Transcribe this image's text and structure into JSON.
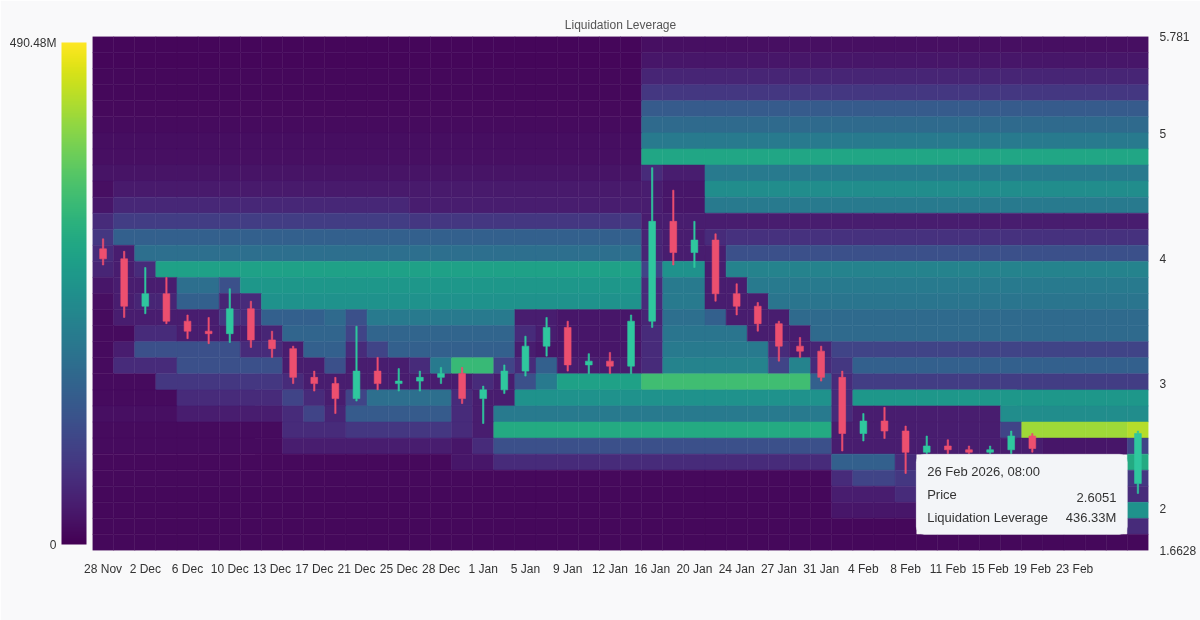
{
  "chart_data": {
    "type": "heatmap",
    "categories": [
      "28 Nov",
      null,
      "2 Dec",
      null,
      "6 Dec",
      null,
      "10 Dec",
      null,
      "13 Dec",
      null,
      "17 Dec",
      null,
      "21 Dec",
      null,
      "25 Dec",
      null,
      "28 Dec",
      null,
      "1 Jan",
      null,
      "5 Jan",
      null,
      "9 Jan",
      null,
      "12 Jan",
      null,
      "16 Jan",
      null,
      "20 Jan",
      null,
      "24 Jan",
      null,
      "27 Jan",
      null,
      "31 Jan",
      null,
      "4 Feb",
      null,
      "8 Feb",
      null,
      "11 Feb",
      null,
      "15 Feb",
      null,
      "19 Feb",
      null,
      "23 Feb",
      null,
      null,
      null
    ],
    "ylim": [
      1.6628,
      5.781
    ],
    "yticks": [
      1.6628,
      2,
      3,
      4,
      5,
      5.781
    ],
    "clim": [
      0,
      490.48
    ],
    "cticks": [
      0,
      {
        "value": 490.48,
        "label": "490.48M"
      }
    ],
    "clabel": "Liquidation Leverage",
    "annotations": [
      "26 Feb 2026, 08:00",
      "Price",
      "2.6051",
      "Liquidation Leverage",
      "436.33M"
    ],
    "cells": [
      [
        8,
        8,
        8,
        8,
        8,
        8,
        8,
        8,
        8,
        8,
        8,
        8,
        8,
        8,
        8,
        8,
        8,
        8,
        8,
        8,
        8,
        8,
        8,
        8,
        8,
        8,
        20,
        20,
        20,
        20,
        20,
        20,
        20,
        20,
        20,
        20,
        20,
        20,
        20,
        20,
        20,
        20,
        20,
        20,
        20,
        20,
        20,
        20,
        20,
        20
      ],
      [
        8,
        8,
        8,
        8,
        8,
        8,
        8,
        8,
        8,
        8,
        8,
        8,
        8,
        8,
        8,
        8,
        8,
        8,
        8,
        8,
        8,
        8,
        8,
        8,
        8,
        8,
        30,
        30,
        30,
        30,
        30,
        30,
        30,
        30,
        30,
        30,
        30,
        30,
        30,
        30,
        30,
        30,
        30,
        30,
        30,
        30,
        30,
        30,
        30,
        30
      ],
      [
        10,
        10,
        10,
        10,
        10,
        10,
        10,
        10,
        10,
        10,
        10,
        10,
        10,
        10,
        10,
        10,
        10,
        10,
        10,
        10,
        10,
        10,
        10,
        10,
        10,
        10,
        50,
        50,
        50,
        50,
        50,
        50,
        50,
        50,
        50,
        50,
        50,
        50,
        50,
        50,
        50,
        50,
        50,
        50,
        50,
        50,
        50,
        50,
        50,
        50
      ],
      [
        10,
        10,
        10,
        10,
        10,
        10,
        10,
        10,
        10,
        10,
        10,
        10,
        10,
        10,
        10,
        10,
        10,
        10,
        10,
        10,
        10,
        10,
        10,
        10,
        10,
        10,
        80,
        80,
        80,
        80,
        80,
        80,
        80,
        80,
        80,
        80,
        80,
        80,
        80,
        80,
        80,
        80,
        80,
        80,
        80,
        80,
        80,
        80,
        80,
        80
      ],
      [
        12,
        12,
        12,
        12,
        12,
        12,
        12,
        12,
        12,
        12,
        12,
        12,
        12,
        12,
        12,
        12,
        12,
        12,
        12,
        12,
        12,
        12,
        12,
        12,
        12,
        12,
        140,
        140,
        140,
        140,
        140,
        140,
        140,
        140,
        140,
        140,
        140,
        140,
        140,
        140,
        140,
        140,
        140,
        140,
        140,
        140,
        140,
        140,
        140,
        140
      ],
      [
        15,
        15,
        15,
        15,
        15,
        15,
        15,
        15,
        15,
        15,
        15,
        15,
        15,
        15,
        15,
        15,
        15,
        15,
        15,
        15,
        15,
        15,
        15,
        15,
        15,
        15,
        170,
        170,
        170,
        170,
        170,
        170,
        170,
        170,
        170,
        170,
        170,
        170,
        170,
        170,
        170,
        170,
        170,
        170,
        170,
        170,
        170,
        170,
        170,
        170
      ],
      [
        18,
        18,
        18,
        18,
        18,
        18,
        18,
        18,
        18,
        18,
        18,
        18,
        18,
        18,
        18,
        18,
        18,
        18,
        18,
        18,
        18,
        18,
        18,
        18,
        18,
        18,
        200,
        200,
        200,
        200,
        200,
        200,
        200,
        200,
        200,
        200,
        200,
        200,
        200,
        200,
        200,
        200,
        200,
        200,
        200,
        200,
        200,
        200,
        200,
        200
      ],
      [
        20,
        20,
        20,
        20,
        20,
        20,
        20,
        20,
        20,
        20,
        20,
        20,
        20,
        20,
        20,
        20,
        20,
        20,
        20,
        20,
        20,
        20,
        20,
        20,
        20,
        20,
        290,
        290,
        290,
        290,
        290,
        290,
        290,
        290,
        290,
        290,
        290,
        290,
        290,
        290,
        290,
        290,
        290,
        290,
        290,
        290,
        290,
        290,
        290,
        290
      ],
      [
        25,
        25,
        25,
        25,
        25,
        25,
        25,
        25,
        25,
        25,
        25,
        25,
        25,
        25,
        25,
        25,
        25,
        25,
        25,
        25,
        25,
        25,
        25,
        25,
        25,
        25,
        60,
        40,
        40,
        200,
        200,
        200,
        200,
        200,
        200,
        200,
        200,
        200,
        200,
        200,
        200,
        200,
        200,
        200,
        200,
        200,
        200,
        200,
        200,
        200
      ],
      [
        20,
        35,
        35,
        35,
        35,
        35,
        35,
        35,
        35,
        35,
        35,
        35,
        35,
        35,
        35,
        35,
        35,
        35,
        35,
        35,
        35,
        35,
        35,
        35,
        35,
        35,
        40,
        30,
        30,
        240,
        240,
        240,
        240,
        240,
        240,
        240,
        240,
        240,
        240,
        240,
        240,
        240,
        240,
        240,
        240,
        240,
        240,
        240,
        240,
        240
      ],
      [
        30,
        55,
        55,
        55,
        55,
        55,
        55,
        55,
        55,
        55,
        55,
        55,
        55,
        55,
        55,
        40,
        40,
        40,
        40,
        40,
        40,
        40,
        40,
        40,
        40,
        40,
        40,
        30,
        30,
        200,
        200,
        200,
        200,
        200,
        200,
        200,
        200,
        200,
        200,
        200,
        200,
        200,
        200,
        200,
        200,
        200,
        200,
        200,
        200,
        200
      ],
      [
        60,
        90,
        90,
        90,
        90,
        90,
        90,
        90,
        90,
        90,
        90,
        90,
        90,
        90,
        90,
        80,
        80,
        80,
        80,
        80,
        80,
        80,
        80,
        80,
        80,
        80,
        40,
        40,
        40,
        40,
        40,
        40,
        40,
        40,
        40,
        40,
        40,
        40,
        40,
        40,
        40,
        40,
        40,
        40,
        40,
        40,
        40,
        40,
        40,
        40
      ],
      [
        80,
        150,
        150,
        150,
        150,
        150,
        150,
        150,
        150,
        150,
        150,
        150,
        150,
        150,
        150,
        150,
        150,
        150,
        150,
        150,
        150,
        150,
        150,
        150,
        150,
        150,
        50,
        40,
        40,
        60,
        70,
        70,
        70,
        70,
        70,
        70,
        70,
        70,
        70,
        70,
        70,
        70,
        70,
        70,
        70,
        70,
        70,
        70,
        70,
        70
      ],
      [
        60,
        40,
        180,
        180,
        180,
        180,
        180,
        180,
        180,
        180,
        180,
        180,
        180,
        180,
        180,
        180,
        180,
        180,
        180,
        180,
        180,
        180,
        180,
        180,
        180,
        180,
        50,
        40,
        40,
        40,
        120,
        120,
        120,
        120,
        120,
        120,
        120,
        120,
        120,
        120,
        120,
        120,
        120,
        120,
        120,
        120,
        120,
        120,
        120,
        120
      ],
      [
        50,
        40,
        60,
        280,
        280,
        280,
        280,
        280,
        280,
        280,
        280,
        280,
        280,
        280,
        280,
        280,
        280,
        280,
        280,
        280,
        280,
        280,
        280,
        280,
        280,
        280,
        100,
        250,
        250,
        40,
        220,
        220,
        220,
        220,
        220,
        220,
        220,
        220,
        220,
        220,
        220,
        220,
        220,
        220,
        220,
        220,
        220,
        220,
        220,
        220
      ],
      [
        30,
        40,
        40,
        40,
        180,
        180,
        120,
        260,
        260,
        260,
        260,
        260,
        260,
        260,
        260,
        260,
        260,
        260,
        260,
        260,
        260,
        260,
        260,
        260,
        260,
        260,
        60,
        200,
        200,
        40,
        40,
        200,
        200,
        200,
        200,
        200,
        200,
        200,
        200,
        200,
        200,
        200,
        200,
        200,
        200,
        200,
        200,
        200,
        200,
        200
      ],
      [
        20,
        40,
        50,
        50,
        150,
        150,
        50,
        60,
        250,
        250,
        250,
        250,
        250,
        250,
        250,
        250,
        250,
        250,
        250,
        250,
        250,
        250,
        250,
        250,
        250,
        250,
        60,
        200,
        200,
        40,
        40,
        40,
        190,
        190,
        190,
        190,
        190,
        190,
        190,
        190,
        190,
        190,
        190,
        190,
        190,
        190,
        190,
        190,
        190,
        190
      ],
      [
        15,
        40,
        40,
        40,
        40,
        40,
        80,
        60,
        150,
        150,
        150,
        170,
        120,
        200,
        200,
        200,
        200,
        200,
        200,
        200,
        40,
        40,
        30,
        30,
        30,
        30,
        50,
        180,
        180,
        150,
        40,
        40,
        40,
        170,
        170,
        170,
        170,
        170,
        170,
        170,
        170,
        170,
        170,
        170,
        170,
        170,
        170,
        170,
        170,
        170
      ],
      [
        15,
        15,
        60,
        60,
        40,
        40,
        40,
        40,
        50,
        160,
        160,
        160,
        100,
        160,
        160,
        160,
        160,
        160,
        160,
        160,
        60,
        40,
        30,
        30,
        30,
        30,
        60,
        190,
        190,
        190,
        190,
        40,
        40,
        40,
        170,
        170,
        170,
        170,
        170,
        170,
        170,
        170,
        170,
        170,
        170,
        170,
        170,
        170,
        170,
        170
      ],
      [
        15,
        40,
        120,
        120,
        120,
        120,
        120,
        60,
        60,
        40,
        150,
        150,
        60,
        100,
        150,
        150,
        150,
        150,
        150,
        150,
        40,
        30,
        30,
        30,
        30,
        30,
        60,
        200,
        200,
        200,
        200,
        200,
        60,
        40,
        50,
        100,
        100,
        100,
        100,
        100,
        100,
        100,
        100,
        100,
        100,
        100,
        100,
        100,
        100,
        100
      ],
      [
        15,
        60,
        60,
        60,
        120,
        120,
        120,
        120,
        120,
        40,
        40,
        120,
        40,
        40,
        40,
        60,
        200,
        330,
        330,
        100,
        60,
        150,
        40,
        40,
        40,
        40,
        60,
        220,
        220,
        220,
        220,
        220,
        100,
        220,
        60,
        80,
        150,
        150,
        150,
        150,
        150,
        150,
        150,
        150,
        150,
        150,
        150,
        150,
        150,
        150
      ],
      [
        15,
        15,
        15,
        80,
        80,
        80,
        80,
        80,
        80,
        60,
        40,
        40,
        40,
        40,
        40,
        40,
        40,
        40,
        60,
        40,
        120,
        200,
        280,
        280,
        280,
        280,
        340,
        340,
        340,
        340,
        340,
        340,
        340,
        340,
        150,
        60,
        90,
        90,
        90,
        90,
        90,
        90,
        90,
        90,
        90,
        90,
        90,
        90,
        90,
        90
      ],
      [
        15,
        15,
        15,
        15,
        60,
        60,
        60,
        60,
        60,
        100,
        60,
        40,
        100,
        180,
        180,
        180,
        180,
        60,
        40,
        40,
        250,
        250,
        250,
        250,
        250,
        250,
        250,
        250,
        250,
        250,
        250,
        250,
        250,
        250,
        250,
        60,
        260,
        260,
        260,
        260,
        260,
        260,
        260,
        260,
        260,
        260,
        260,
        260,
        260,
        260
      ],
      [
        20,
        20,
        20,
        20,
        40,
        40,
        40,
        40,
        40,
        60,
        100,
        50,
        140,
        140,
        140,
        140,
        140,
        60,
        40,
        200,
        200,
        200,
        200,
        200,
        200,
        200,
        200,
        200,
        200,
        200,
        200,
        200,
        200,
        200,
        200,
        60,
        40,
        40,
        40,
        40,
        40,
        40,
        40,
        240,
        240,
        240,
        240,
        240,
        240,
        240
      ],
      [
        15,
        15,
        15,
        15,
        15,
        15,
        15,
        15,
        15,
        60,
        60,
        60,
        80,
        80,
        80,
        80,
        80,
        60,
        40,
        300,
        300,
        300,
        300,
        300,
        300,
        300,
        300,
        300,
        300,
        300,
        300,
        300,
        300,
        300,
        300,
        40,
        40,
        40,
        40,
        40,
        40,
        40,
        40,
        100,
        420,
        420,
        420,
        420,
        420,
        436.33
      ],
      [
        15,
        15,
        15,
        15,
        15,
        15,
        15,
        15,
        15,
        40,
        40,
        40,
        40,
        40,
        40,
        40,
        40,
        30,
        60,
        120,
        120,
        120,
        120,
        120,
        120,
        120,
        120,
        120,
        120,
        120,
        120,
        120,
        120,
        120,
        120,
        40,
        40,
        40,
        40,
        40,
        40,
        40,
        40,
        40,
        40,
        30,
        30,
        30,
        30,
        100
      ],
      [
        12,
        12,
        12,
        12,
        12,
        12,
        12,
        12,
        12,
        12,
        12,
        12,
        12,
        12,
        12,
        12,
        12,
        30,
        30,
        60,
        60,
        60,
        60,
        60,
        60,
        60,
        60,
        60,
        60,
        60,
        60,
        60,
        60,
        60,
        60,
        150,
        150,
        150,
        60,
        null,
        null,
        null,
        null,
        null,
        null,
        null,
        null,
        null,
        null,
        300
      ],
      [
        12,
        12,
        12,
        12,
        12,
        12,
        12,
        12,
        12,
        12,
        12,
        12,
        12,
        12,
        12,
        12,
        12,
        12,
        12,
        12,
        12,
        12,
        12,
        12,
        12,
        12,
        12,
        12,
        12,
        12,
        12,
        12,
        12,
        12,
        12,
        60,
        100,
        100,
        80,
        null,
        null,
        null,
        null,
        null,
        null,
        null,
        null,
        null,
        null,
        80
      ],
      [
        10,
        10,
        10,
        10,
        10,
        10,
        10,
        10,
        10,
        10,
        10,
        10,
        10,
        10,
        10,
        10,
        10,
        10,
        10,
        10,
        10,
        10,
        10,
        10,
        10,
        10,
        10,
        10,
        10,
        10,
        10,
        10,
        10,
        10,
        10,
        40,
        40,
        40,
        60,
        null,
        null,
        null,
        null,
        null,
        null,
        null,
        null,
        null,
        null,
        60
      ],
      [
        10,
        10,
        10,
        10,
        10,
        10,
        10,
        10,
        10,
        10,
        10,
        10,
        10,
        10,
        10,
        10,
        10,
        10,
        10,
        10,
        10,
        10,
        10,
        10,
        10,
        10,
        10,
        10,
        10,
        10,
        10,
        10,
        10,
        10,
        10,
        30,
        30,
        30,
        30,
        null,
        null,
        null,
        null,
        null,
        null,
        null,
        null,
        null,
        null,
        250
      ],
      [
        10,
        10,
        10,
        10,
        10,
        10,
        10,
        10,
        10,
        10,
        10,
        10,
        10,
        10,
        10,
        10,
        10,
        10,
        10,
        10,
        10,
        10,
        10,
        10,
        10,
        10,
        10,
        10,
        10,
        10,
        10,
        10,
        10,
        10,
        10,
        10,
        10,
        10,
        10,
        null,
        null,
        null,
        null,
        null,
        null,
        null,
        null,
        null,
        null,
        60
      ],
      [
        10,
        10,
        10,
        10,
        10,
        10,
        10,
        10,
        10,
        10,
        10,
        10,
        10,
        10,
        10,
        10,
        10,
        10,
        10,
        10,
        10,
        10,
        10,
        10,
        10,
        10,
        10,
        10,
        10,
        10,
        10,
        10,
        10,
        10,
        10,
        10,
        10,
        10,
        10,
        10,
        10,
        10,
        10,
        10,
        10,
        10,
        10,
        10,
        10,
        10
      ]
    ],
    "series": [
      {
        "type": "candlestick",
        "ohlc": [
          [
            4.08,
            4.16,
            3.95,
            4.0
          ],
          [
            4.0,
            4.06,
            3.53,
            3.62
          ],
          [
            3.62,
            3.93,
            3.56,
            3.72
          ],
          [
            3.72,
            3.85,
            3.48,
            3.5
          ],
          [
            3.5,
            3.55,
            3.36,
            3.42
          ],
          [
            3.42,
            3.53,
            3.32,
            3.4
          ],
          [
            3.4,
            3.76,
            3.33,
            3.6
          ],
          [
            3.6,
            3.66,
            3.29,
            3.35
          ],
          [
            3.35,
            3.42,
            3.21,
            3.28
          ],
          [
            3.28,
            3.3,
            3.0,
            3.05
          ],
          [
            3.05,
            3.1,
            2.94,
            3.0
          ],
          [
            3.0,
            3.05,
            2.76,
            2.88
          ],
          [
            2.88,
            3.46,
            2.86,
            3.1
          ],
          [
            3.1,
            3.21,
            2.95,
            3.0
          ],
          [
            3.0,
            3.12,
            2.94,
            3.02
          ],
          [
            3.02,
            3.1,
            2.94,
            3.05
          ],
          [
            3.05,
            3.13,
            3.0,
            3.08
          ],
          [
            3.08,
            3.13,
            2.84,
            2.88
          ],
          [
            2.88,
            2.98,
            2.68,
            2.95
          ],
          [
            2.95,
            3.15,
            2.92,
            3.1
          ],
          [
            3.1,
            3.38,
            3.06,
            3.3
          ],
          [
            3.3,
            3.53,
            3.22,
            3.45
          ],
          [
            3.45,
            3.5,
            3.1,
            3.15
          ],
          [
            3.15,
            3.24,
            3.08,
            3.18
          ],
          [
            3.18,
            3.25,
            3.08,
            3.14
          ],
          [
            3.14,
            3.55,
            3.08,
            3.5
          ],
          [
            3.5,
            4.73,
            3.45,
            4.3
          ],
          [
            4.3,
            4.55,
            3.95,
            4.05
          ],
          [
            4.05,
            4.3,
            3.93,
            4.15
          ],
          [
            4.15,
            4.2,
            3.66,
            3.72
          ],
          [
            3.72,
            3.8,
            3.55,
            3.62
          ],
          [
            3.62,
            3.65,
            3.42,
            3.48
          ],
          [
            3.48,
            3.5,
            3.18,
            3.3
          ],
          [
            3.3,
            3.37,
            3.21,
            3.26
          ],
          [
            3.26,
            3.3,
            3.02,
            3.05
          ],
          [
            3.05,
            3.1,
            2.46,
            2.6
          ],
          [
            2.6,
            2.76,
            2.54,
            2.7
          ],
          [
            2.7,
            2.81,
            2.56,
            2.62
          ],
          [
            2.62,
            2.66,
            2.28,
            2.45
          ],
          [
            2.45,
            2.58,
            2.44,
            2.5
          ],
          [
            2.5,
            2.55,
            2.44,
            2.47
          ],
          [
            2.47,
            2.5,
            2.44,
            2.45
          ],
          [
            2.45,
            2.5,
            2.44,
            2.47
          ],
          [
            2.47,
            2.62,
            2.44,
            2.58
          ],
          [
            2.58,
            2.6,
            2.45,
            2.48
          ],
          null,
          null,
          null,
          null,
          [
            2.2,
            2.62,
            2.12,
            2.6
          ]
        ],
        "colors": [
          "#ec4f6f",
          "#ec4f6f",
          "#2fc79e",
          "#ec4f6f",
          "#ec4f6f",
          "#ec4f6f",
          "#2fc79e",
          "#ec4f6f",
          "#ec4f6f",
          "#ec4f6f",
          "#ec4f6f",
          "#ec4f6f",
          "#2fc79e",
          "#ec4f6f",
          "#2fc79e",
          "#2fc79e",
          "#2fc79e",
          "#ec4f6f",
          "#2fc79e",
          "#2fc79e",
          "#2fc79e",
          "#2fc79e",
          "#ec4f6f",
          "#2fc79e",
          "#ec4f6f",
          "#2fc79e",
          "#2fc79e",
          "#ec4f6f",
          "#2fc79e",
          "#ec4f6f",
          "#ec4f6f",
          "#ec4f6f",
          "#ec4f6f",
          "#ec4f6f",
          "#ec4f6f",
          "#ec4f6f",
          "#2fc79e",
          "#ec4f6f",
          "#ec4f6f",
          "#2fc79e",
          "#ec4f6f",
          "#ec4f6f",
          "#2fc79e",
          "#2fc79e",
          "#ec4f6f",
          null,
          null,
          null,
          null,
          "#2fc79e"
        ]
      }
    ]
  }
}
